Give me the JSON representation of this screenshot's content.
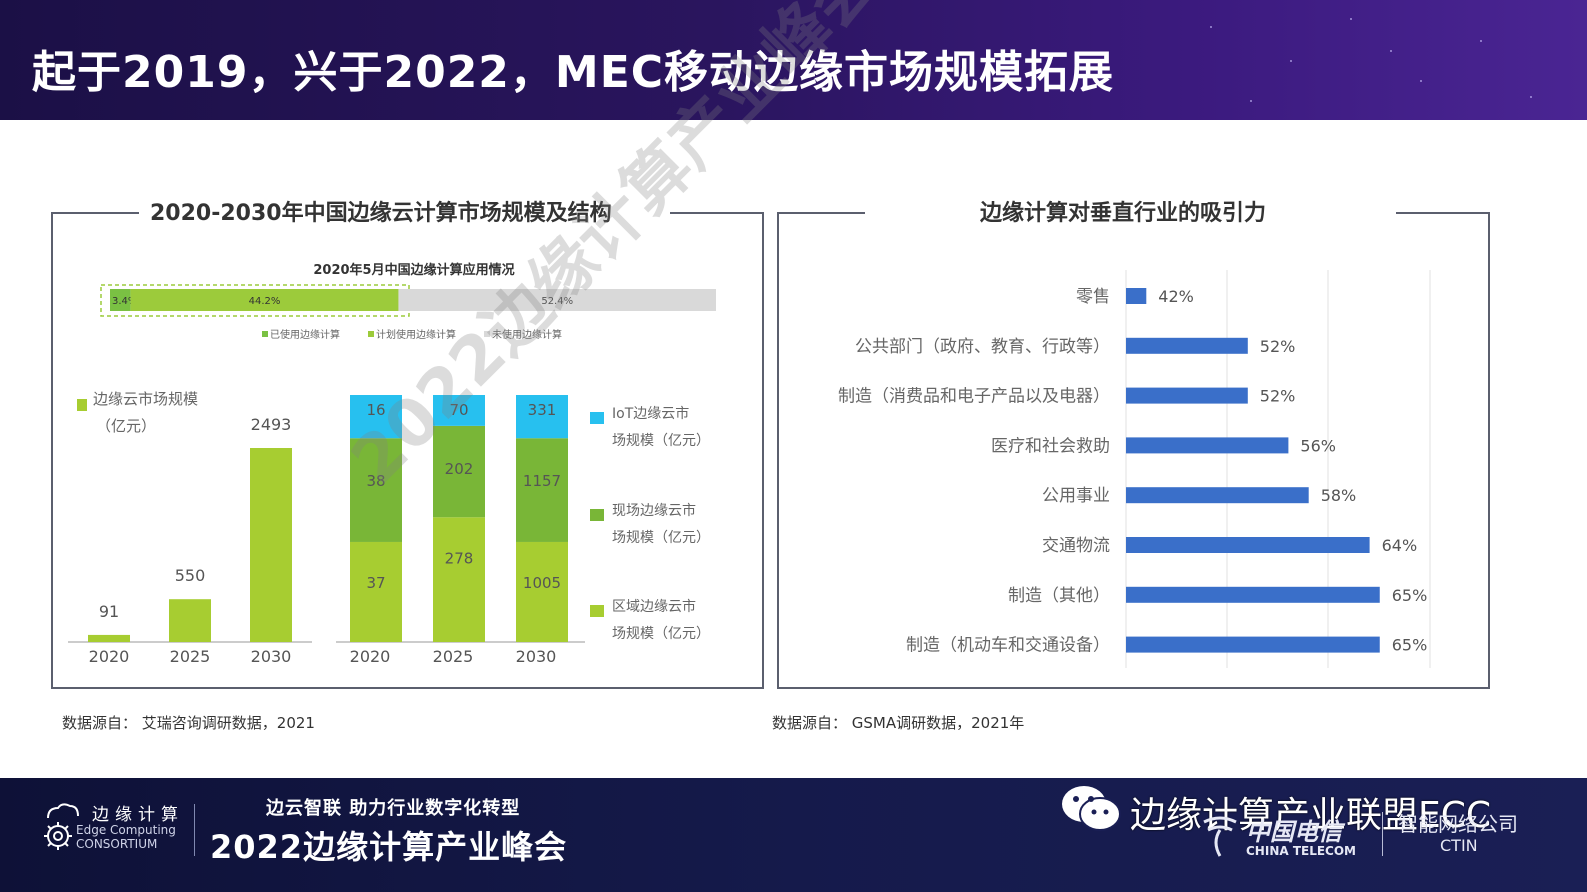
{
  "slide": {
    "title": "起于2019，兴于2022，MEC移动边缘市场规模拓展"
  },
  "left_panel": {
    "title": "2020-2030年中国边缘云计算市场规模及结构",
    "source": "数据源自： 艾瑞咨询调研数据，2021"
  },
  "right_panel": {
    "title": "边缘计算对垂直行业的吸引力",
    "source": "数据源自： GSMA调研数据，2021年"
  },
  "watermark": "2022边缘计算产业峰会",
  "footer": {
    "ecc_name_cn": "边缘计算",
    "ecc_name_en_line1": "Edge Computing",
    "ecc_name_en_line2": "CONSORTIUM",
    "slogan": "边云智联  助力行业数字化转型",
    "summit": "2022边缘计算产业峰会",
    "wechat_account": "边缘计算产业联盟ECC",
    "telecom_cn": "中国电信",
    "telecom_en": "CHINA TELECOM",
    "ctin_cn": "智能网络公司",
    "ctin_en": "CTIN"
  },
  "chart_data": [
    {
      "type": "bar",
      "orientation": "horizontal-stacked",
      "title": "2020年5月中国边缘计算应用情况",
      "categories": [
        "2020年5月"
      ],
      "series": [
        {
          "name": "已使用边缘计算",
          "values": [
            3.4
          ],
          "label": "3.4%",
          "color": "#7ac143"
        },
        {
          "name": "计划使用边缘计算",
          "values": [
            44.2
          ],
          "label": "44.2%",
          "color": "#9ccb3b"
        },
        {
          "name": "未使用边缘计算",
          "values": [
            52.4
          ],
          "label": "52.4%",
          "color": "#d9d9d9"
        }
      ],
      "xlim": [
        0,
        100
      ],
      "legend": "bottom"
    },
    {
      "type": "bar",
      "categories": [
        "2020",
        "2025",
        "2030"
      ],
      "series": [
        {
          "name": "边缘云市场规模（亿元）",
          "values": [
            91,
            550,
            2493
          ],
          "color": "#a7cd31"
        }
      ],
      "ylim": [
        0,
        2600
      ],
      "legend": "top-left"
    },
    {
      "type": "bar",
      "stacked": true,
      "categories": [
        "2020",
        "2025",
        "2030"
      ],
      "series": [
        {
          "name": "区域边缘云市场规模（亿元）",
          "values": [
            37,
            278,
            1005
          ],
          "color": "#a7cd31"
        },
        {
          "name": "现场边缘云市场规模（亿元）",
          "values": [
            38,
            202,
            1157
          ],
          "color": "#79b637"
        },
        {
          "name": "IoT边缘云市场规模（亿元）",
          "values": [
            16,
            70,
            331
          ],
          "color": "#27c0ef"
        }
      ],
      "legend": "right",
      "note": "each bar's segments are drawn at equal height to 100% (structure view)"
    },
    {
      "type": "bar",
      "orientation": "horizontal",
      "categories": [
        "零售",
        "公共部门（政府、教育、行政等）",
        "制造（消费品和电子产品以及电器）",
        "医疗和社会救助",
        "公用事业",
        "交通物流",
        "制造（其他）",
        "制造（机动车和交通设备）"
      ],
      "series": [
        {
          "name": "",
          "values": [
            42,
            52,
            52,
            56,
            58,
            64,
            65,
            65
          ],
          "color": "#3a6fc9"
        }
      ],
      "labels": [
        "42%",
        "52%",
        "52%",
        "56%",
        "58%",
        "64%",
        "65%",
        "65%"
      ],
      "xlim": [
        40,
        70
      ],
      "grid": true
    }
  ]
}
